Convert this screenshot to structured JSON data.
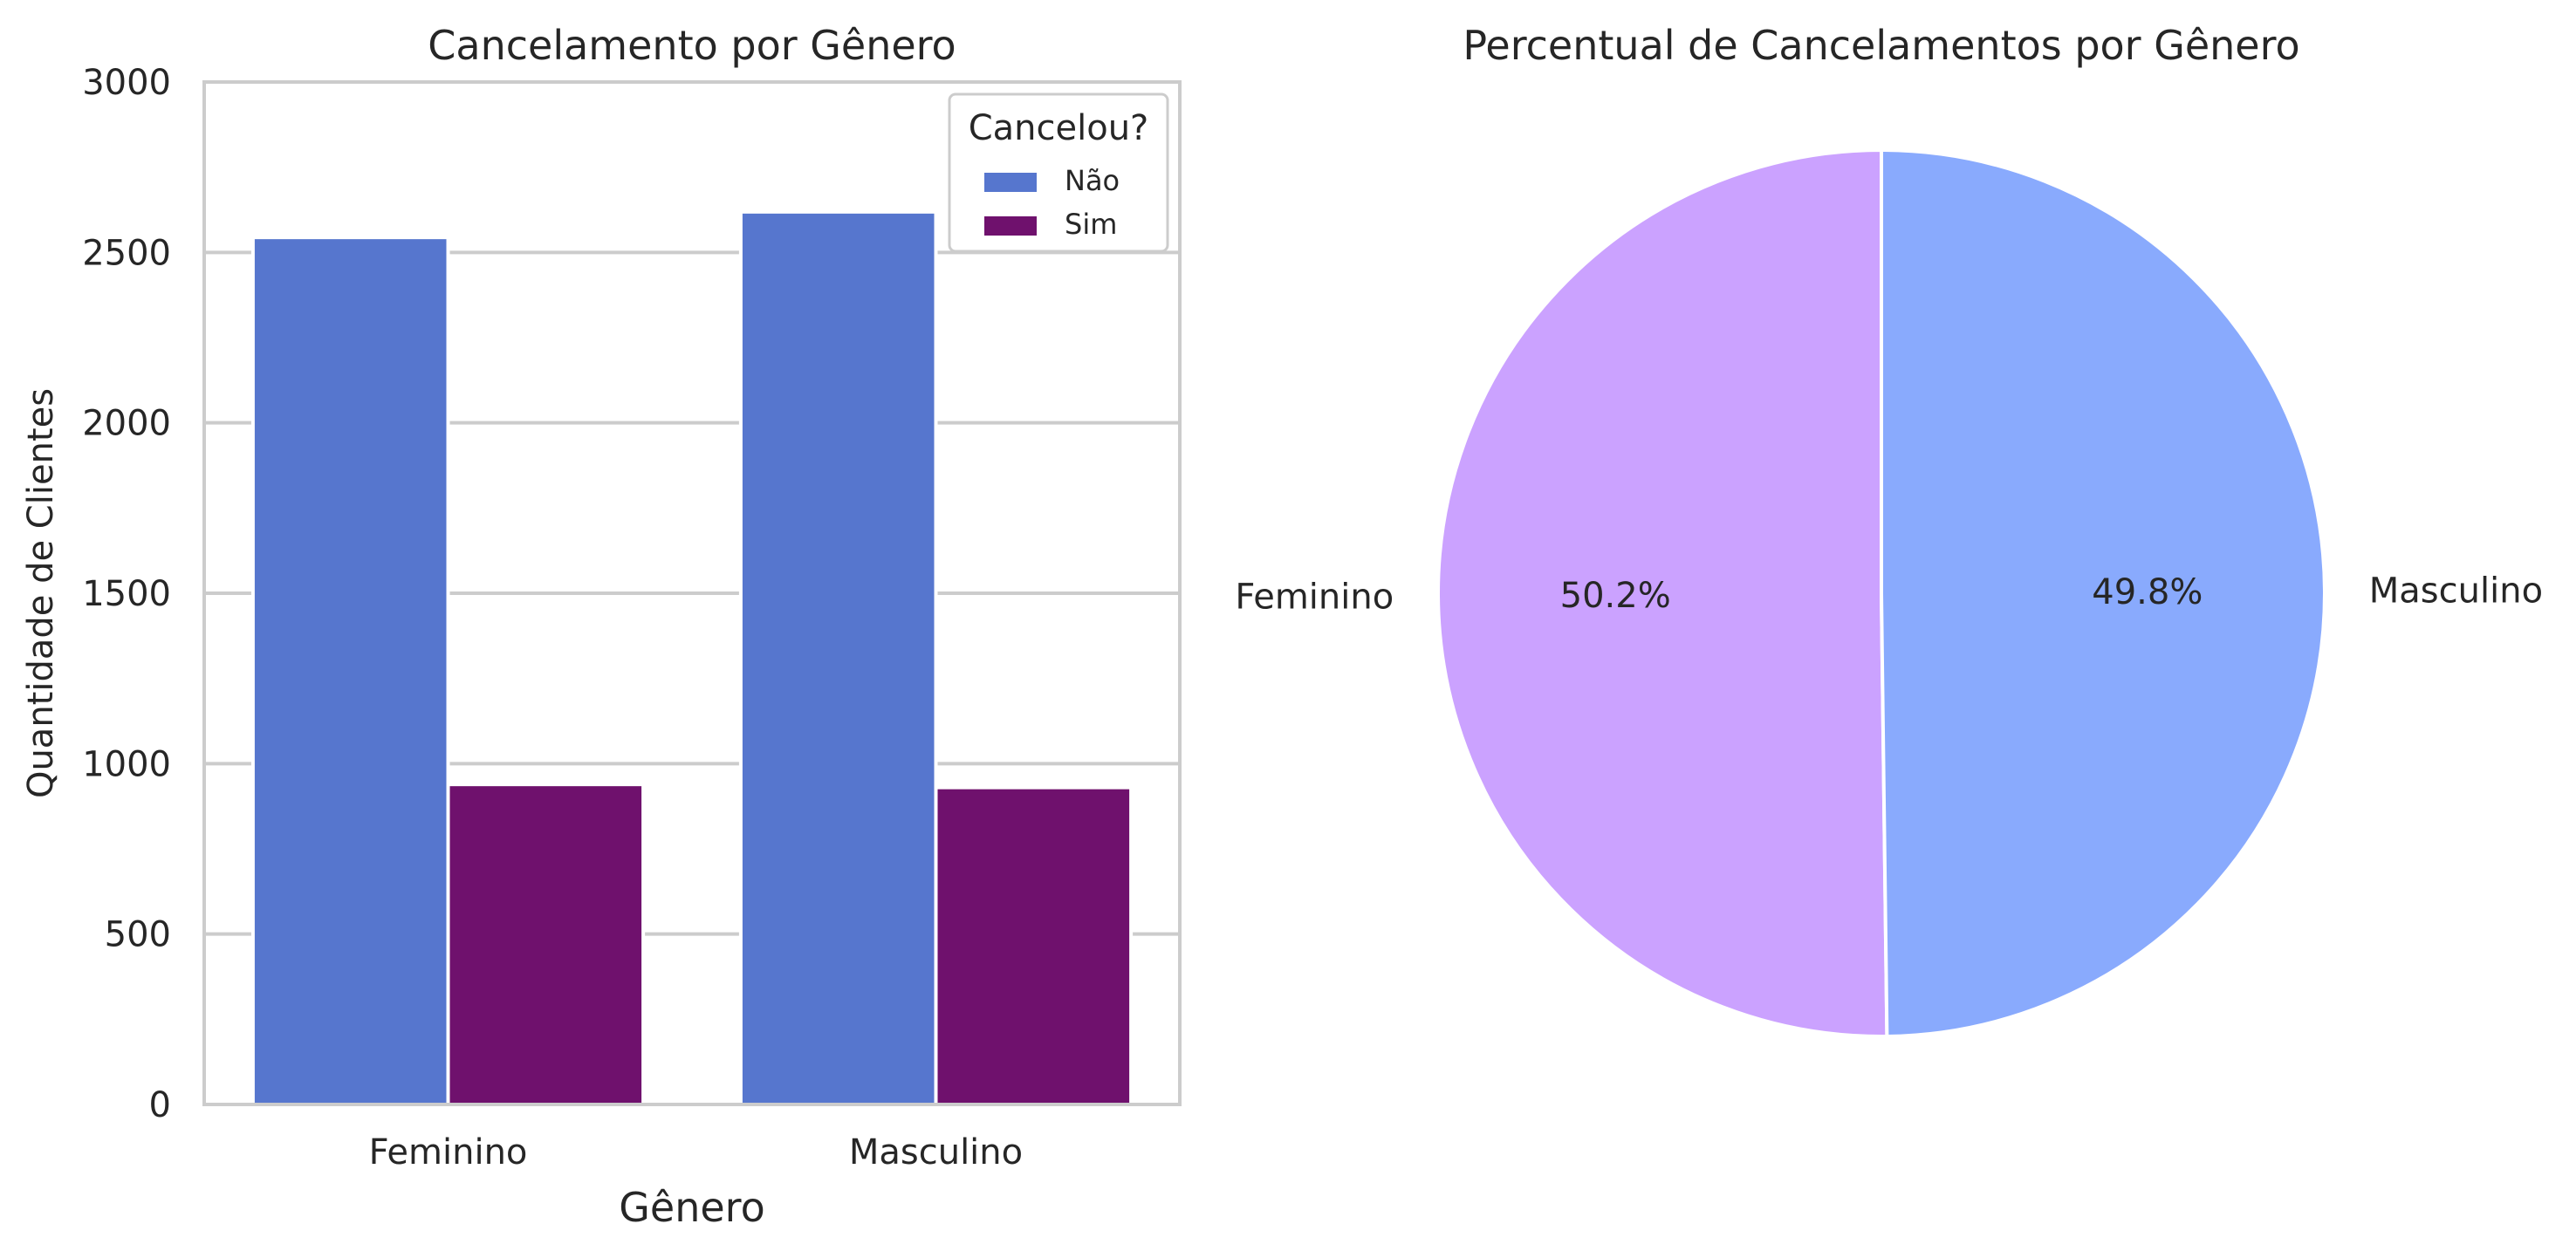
{
  "chart_data": [
    {
      "type": "bar",
      "title": "Cancelamento por Gênero",
      "xlabel": "Gênero",
      "ylabel": "Quantidade de Clientes",
      "ylim": [
        0,
        3000
      ],
      "yticks": [
        0,
        500,
        1000,
        1500,
        2000,
        2500,
        3000
      ],
      "categories": [
        "Feminino",
        "Masculino"
      ],
      "legend": {
        "title": "Cancelou?",
        "placement": "top-right"
      },
      "grid": "horizontal",
      "series": [
        {
          "name": "Não",
          "color": "#5676CE",
          "values": [
            2544,
            2619
          ]
        },
        {
          "name": "Sim",
          "color": "#6F116D",
          "values": [
            939,
            930
          ]
        }
      ]
    },
    {
      "type": "pie",
      "title": "Percentual de Cancelamentos por Gênero",
      "slices": [
        {
          "label": "Feminino",
          "value": 50.2,
          "pct_label": "50.2%",
          "color": "#CBA2FF"
        },
        {
          "label": "Masculino",
          "value": 49.8,
          "pct_label": "49.8%",
          "color": "#89AAFD"
        }
      ]
    }
  ]
}
